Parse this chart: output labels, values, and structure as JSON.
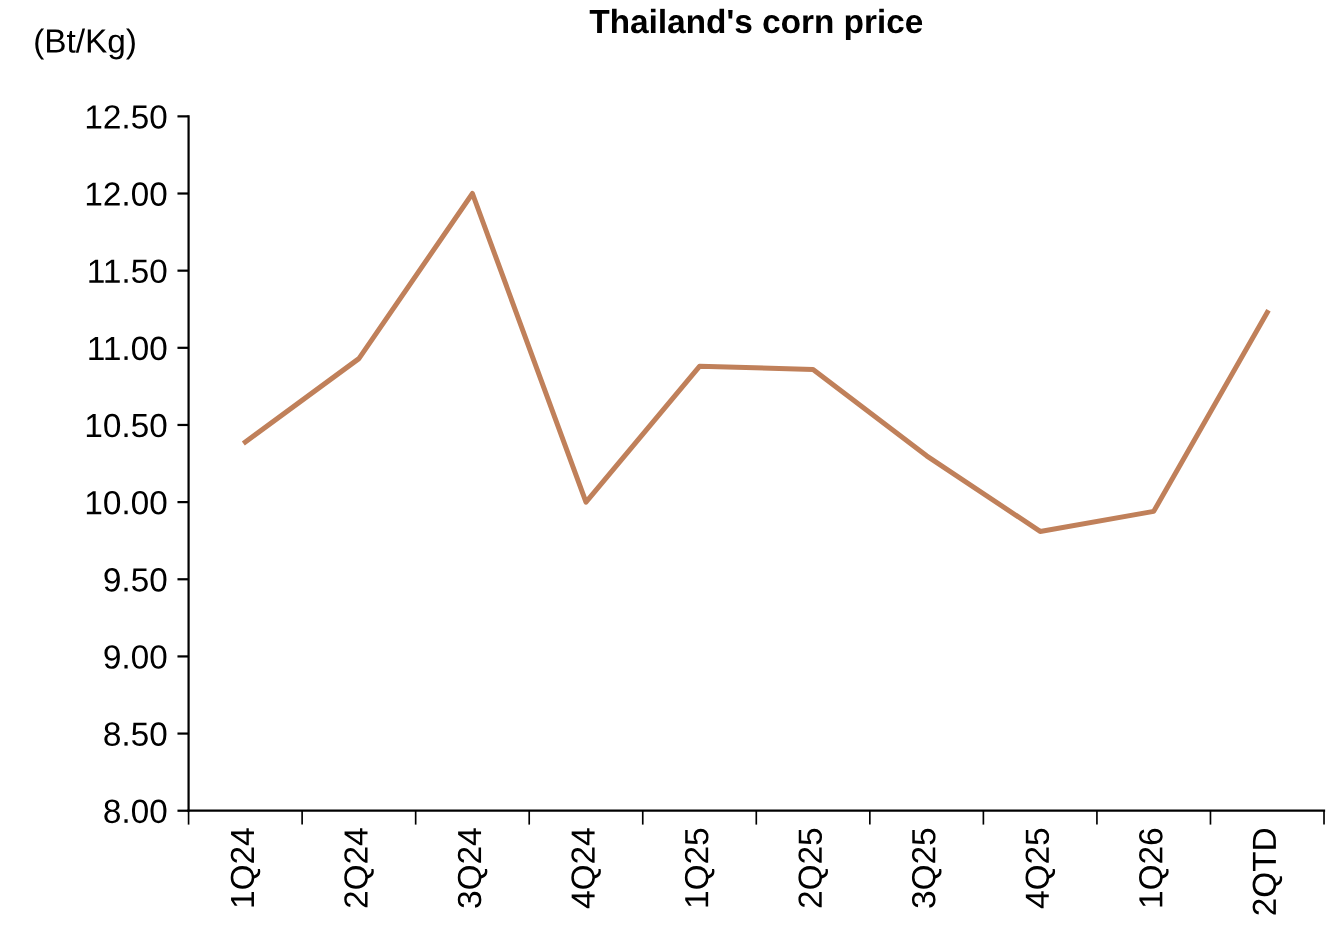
{
  "chart_data": {
    "type": "line",
    "title": "Thailand's corn price",
    "ylabel": "(Bt/Kg)",
    "categories": [
      "1Q24",
      "2Q24",
      "3Q24",
      "4Q24",
      "1Q25",
      "2Q25",
      "3Q25",
      "4Q25",
      "1Q26",
      "2QTD"
    ],
    "series": [
      {
        "color": "#c0805a",
        "values": [
          10.39,
          10.93,
          12.0,
          10.0,
          10.88,
          10.86,
          10.3,
          9.81,
          9.94,
          11.23
        ]
      }
    ],
    "ylim": [
      8.0,
      12.5
    ],
    "yticks": [
      {
        "value": 8.0,
        "label": "8.00"
      },
      {
        "value": 8.5,
        "label": "8.50"
      },
      {
        "value": 9.0,
        "label": "9.00"
      },
      {
        "value": 9.5,
        "label": "9.50"
      },
      {
        "value": 10.0,
        "label": "10.00"
      },
      {
        "value": 10.5,
        "label": "10.50"
      },
      {
        "value": 11.0,
        "label": "11.00"
      },
      {
        "value": 11.5,
        "label": "11.50"
      },
      {
        "value": 12.0,
        "label": "12.00"
      },
      {
        "value": 12.5,
        "label": "12.50"
      }
    ],
    "grid": false,
    "legend": false,
    "marker": "none",
    "line_style": "solid"
  }
}
